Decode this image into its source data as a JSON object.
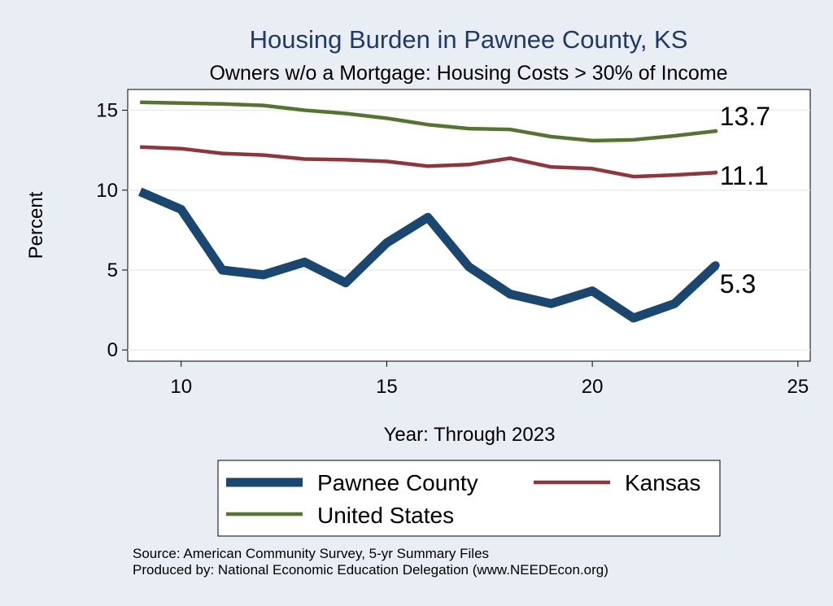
{
  "chart_data": {
    "type": "line",
    "title": "Housing Burden in Pawnee County, KS",
    "subtitle": "Owners w/o a Mortgage: Housing Costs > 30% of Income",
    "xlabel": "Year: Through 2023",
    "ylabel": "Percent",
    "xlim": [
      8.7,
      25.3
    ],
    "ylim": [
      -0.7,
      16.3
    ],
    "xticks": [
      10,
      15,
      20,
      25
    ],
    "yticks": [
      0,
      5,
      10,
      15
    ],
    "grid": true,
    "legend_position": "bottom",
    "x": [
      9,
      10,
      11,
      12,
      13,
      14,
      15,
      16,
      17,
      18,
      19,
      20,
      21,
      22,
      23
    ],
    "series": [
      {
        "name": "Pawnee County",
        "color": "#1a476f",
        "values": [
          9.9,
          8.8,
          5.0,
          4.7,
          5.5,
          4.2,
          6.7,
          8.3,
          5.2,
          3.5,
          2.9,
          3.7,
          2.0,
          2.9,
          5.3
        ],
        "end_label": "5.3"
      },
      {
        "name": "Kansas",
        "color": "#90353b",
        "values": [
          12.7,
          12.6,
          12.3,
          12.2,
          11.95,
          11.9,
          11.8,
          11.5,
          11.6,
          12.0,
          11.45,
          11.35,
          10.85,
          10.95,
          11.1
        ],
        "end_label": "11.1"
      },
      {
        "name": "United States",
        "color": "#55752f",
        "values": [
          15.5,
          15.45,
          15.4,
          15.3,
          15.0,
          14.8,
          14.5,
          14.1,
          13.85,
          13.8,
          13.35,
          13.1,
          13.15,
          13.4,
          13.7
        ],
        "end_label": "13.7"
      }
    ],
    "source_lines": [
      "Source: American Community Survey, 5-yr Summary Files",
      "Produced by: National Economic Education Delegation (www.NEEDEcon.org)"
    ]
  }
}
